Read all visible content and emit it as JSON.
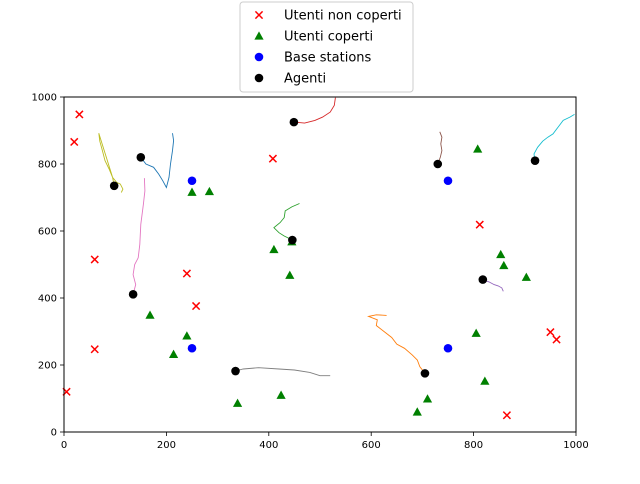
{
  "chart_data": {
    "type": "scatter",
    "title": "",
    "xlabel": "",
    "ylabel": "",
    "xlim": [
      0,
      1000
    ],
    "ylim": [
      0,
      1000
    ],
    "xticks": [
      "0",
      "200",
      "400",
      "600",
      "800",
      "1000"
    ],
    "yticks": [
      "0",
      "200",
      "400",
      "600",
      "800",
      "1000"
    ],
    "grid": false,
    "legend_position": "upper center, above axes",
    "series": [
      {
        "name": "Utenti non coperti",
        "marker": "x",
        "color": "#ff0000",
        "points": [
          [
            5,
            120
          ],
          [
            30,
            948
          ],
          [
            20,
            866
          ],
          [
            60,
            515
          ],
          [
            60,
            247
          ],
          [
            240,
            473
          ],
          [
            258,
            376
          ],
          [
            408,
            816
          ],
          [
            812,
            619
          ],
          [
            865,
            50
          ],
          [
            950,
            298
          ],
          [
            962,
            276
          ]
        ]
      },
      {
        "name": "Utenti coperti",
        "marker": "triangle",
        "color": "#008000",
        "points": [
          [
            250,
            716
          ],
          [
            284,
            718
          ],
          [
            410,
            545
          ],
          [
            445,
            568
          ],
          [
            441,
            468
          ],
          [
            168,
            349
          ],
          [
            240,
            287
          ],
          [
            214,
            232
          ],
          [
            339,
            86
          ],
          [
            424,
            110
          ],
          [
            690,
            60
          ],
          [
            710,
            99
          ],
          [
            808,
            845
          ],
          [
            853,
            530
          ],
          [
            859,
            497
          ],
          [
            903,
            462
          ],
          [
            805,
            295
          ],
          [
            822,
            152
          ]
        ]
      },
      {
        "name": "Base stations",
        "marker": "circle",
        "color": "#0000ff",
        "points": [
          [
            250,
            750
          ],
          [
            250,
            250
          ],
          [
            750,
            750
          ],
          [
            750,
            250
          ]
        ]
      },
      {
        "name": "Agenti",
        "marker": "circle",
        "color": "#000000",
        "points": [
          [
            150,
            820
          ],
          [
            98,
            735
          ],
          [
            135,
            411
          ],
          [
            449,
            925
          ],
          [
            446,
            573
          ],
          [
            335,
            182
          ],
          [
            705,
            175
          ],
          [
            730,
            800
          ],
          [
            920,
            810
          ],
          [
            818,
            455
          ]
        ]
      }
    ],
    "trajectories": [
      {
        "color": "#1f77b4",
        "points": [
          [
            150,
            820
          ],
          [
            160,
            800
          ],
          [
            175,
            790
          ],
          [
            185,
            770
          ],
          [
            193,
            750
          ],
          [
            200,
            730
          ],
          [
            205,
            760
          ],
          [
            208,
            800
          ],
          [
            212,
            840
          ],
          [
            214,
            870
          ],
          [
            212,
            892
          ]
        ]
      },
      {
        "color": "#bcbd22",
        "points": [
          [
            98,
            735
          ],
          [
            95,
            760
          ],
          [
            88,
            785
          ],
          [
            80,
            810
          ],
          [
            75,
            840
          ],
          [
            70,
            868
          ],
          [
            68,
            892
          ],
          [
            95,
            760
          ],
          [
            103,
            745
          ],
          [
            110,
            740
          ],
          [
            115,
            725
          ],
          [
            112,
            715
          ]
        ]
      },
      {
        "color": "#e377c2",
        "points": [
          [
            135,
            411
          ],
          [
            140,
            440
          ],
          [
            135,
            470
          ],
          [
            138,
            500
          ],
          [
            145,
            520
          ],
          [
            148,
            560
          ],
          [
            150,
            620
          ],
          [
            155,
            680
          ],
          [
            158,
            720
          ],
          [
            157,
            758
          ]
        ]
      },
      {
        "color": "#d62728",
        "points": [
          [
            449,
            925
          ],
          [
            470,
            922
          ],
          [
            490,
            930
          ],
          [
            505,
            940
          ],
          [
            520,
            955
          ],
          [
            528,
            975
          ],
          [
            530,
            998
          ]
        ]
      },
      {
        "color": "#2ca02c",
        "points": [
          [
            446,
            573
          ],
          [
            430,
            585
          ],
          [
            420,
            595
          ],
          [
            410,
            610
          ],
          [
            422,
            625
          ],
          [
            430,
            640
          ],
          [
            432,
            660
          ],
          [
            445,
            672
          ],
          [
            460,
            682
          ]
        ]
      },
      {
        "color": "#7f7f7f",
        "points": [
          [
            335,
            182
          ],
          [
            350,
            188
          ],
          [
            380,
            192
          ],
          [
            420,
            188
          ],
          [
            450,
            185
          ],
          [
            480,
            178
          ],
          [
            500,
            168
          ],
          [
            520,
            168
          ]
        ]
      },
      {
        "color": "#ff7f0e",
        "points": [
          [
            705,
            175
          ],
          [
            695,
            195
          ],
          [
            690,
            215
          ],
          [
            680,
            230
          ],
          [
            665,
            250
          ],
          [
            650,
            262
          ],
          [
            640,
            282
          ],
          [
            625,
            300
          ],
          [
            610,
            318
          ],
          [
            612,
            335
          ],
          [
            595,
            345
          ],
          [
            610,
            350
          ],
          [
            630,
            348
          ]
        ]
      },
      {
        "color": "#8c564b",
        "points": [
          [
            730,
            800
          ],
          [
            735,
            820
          ],
          [
            738,
            840
          ],
          [
            736,
            860
          ],
          [
            738,
            880
          ],
          [
            734,
            896
          ]
        ]
      },
      {
        "color": "#17becf",
        "points": [
          [
            920,
            810
          ],
          [
            918,
            830
          ],
          [
            925,
            850
          ],
          [
            935,
            868
          ],
          [
            945,
            880
          ],
          [
            955,
            890
          ],
          [
            965,
            910
          ],
          [
            975,
            930
          ],
          [
            988,
            940
          ],
          [
            997,
            948
          ]
        ]
      },
      {
        "color": "#9467bd",
        "points": [
          [
            818,
            455
          ],
          [
            830,
            448
          ],
          [
            840,
            440
          ],
          [
            848,
            436
          ],
          [
            855,
            430
          ],
          [
            858,
            420
          ]
        ]
      }
    ]
  }
}
